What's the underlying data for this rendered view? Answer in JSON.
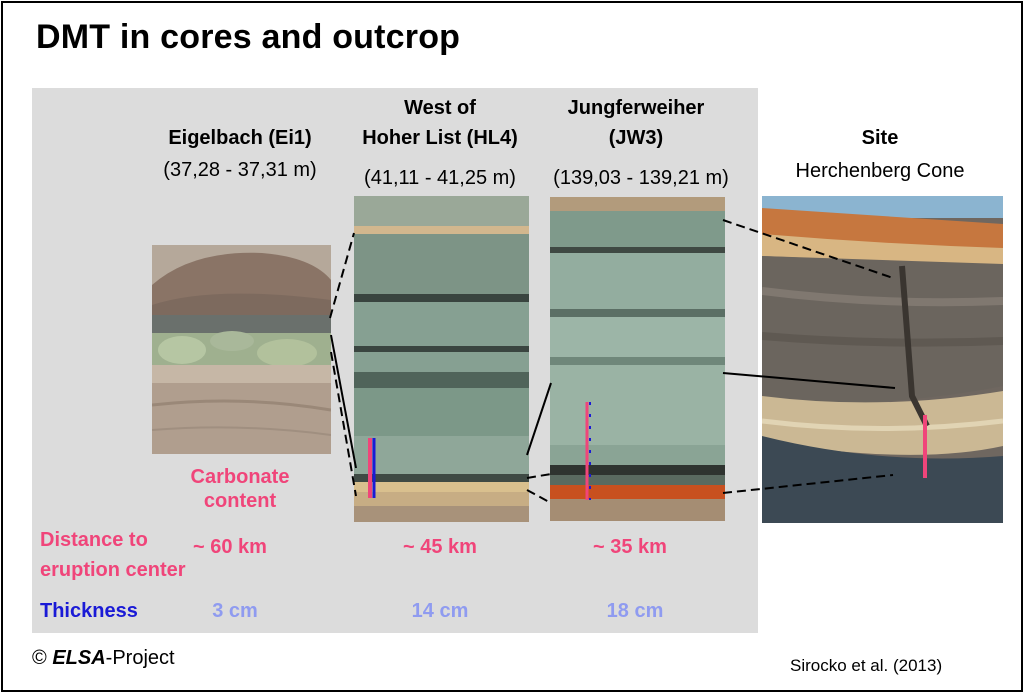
{
  "title": "DMT in cores and outcrop",
  "sites": [
    {
      "name_lines": [
        "Eigelbach (Ei1)"
      ],
      "range": "(37,28 - 37,31 m)",
      "distance": "~ 60 km",
      "thickness": "3 cm"
    },
    {
      "name_lines": [
        "West of",
        "Hoher List (HL4)"
      ],
      "range": "(41,11 - 41,25 m)",
      "distance": "~ 45 km",
      "thickness": "14 cm"
    },
    {
      "name_lines": [
        "Jungferweiher",
        "(JW3)"
      ],
      "range": "(139,03 - 139,21 m)",
      "distance": "~ 35 km",
      "thickness": "18 cm"
    },
    {
      "name_lines": [
        "Site",
        "Herchenberg Cone"
      ]
    }
  ],
  "carbonate_label_lines": [
    "Carbonate",
    "content"
  ],
  "distance_label_lines": [
    "Distance to",
    "eruption center"
  ],
  "thickness_label": "Thickness",
  "footer": {
    "copyright_symbol": "©",
    "brand": "ELSA",
    "suffix": "-Project",
    "citation": "Sirocko et al. (2013)"
  },
  "colors": {
    "pink": "#f0457a",
    "blue": "#1a1ad6",
    "light_blue": "#8f9bf0",
    "panel": "#dcdcdc"
  }
}
